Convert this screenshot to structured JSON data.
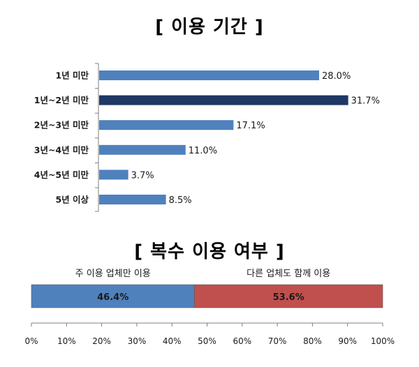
{
  "chart_data": [
    {
      "type": "bar",
      "orientation": "horizontal",
      "title": "[ 이용 기간 ]",
      "categories": [
        "1년 미만",
        "1년~2년 미만",
        "2년~3년 미만",
        "3년~4년 미만",
        "4년~5년 미만",
        "5년 이상"
      ],
      "values": [
        28.0,
        31.7,
        17.1,
        11.0,
        3.7,
        8.5
      ],
      "value_labels": [
        "28.0%",
        "31.7%",
        "17.1%",
        "11.0%",
        "3.7%",
        "8.5%"
      ],
      "xlim": [
        0,
        32
      ],
      "bar_colors": [
        "#4f81bd",
        "#1f3864",
        "#4f81bd",
        "#4f81bd",
        "#4f81bd",
        "#4f81bd"
      ],
      "grid": false
    },
    {
      "type": "bar",
      "orientation": "horizontal",
      "stacked": true,
      "title": "[ 복수 이용 여부 ]",
      "series": [
        {
          "name": "주 이용 업체만 이용",
          "value": 46.4,
          "label": "46.4%",
          "color": "#4f81bd"
        },
        {
          "name": "다른 업체도 함께 이용",
          "value": 53.6,
          "label": "53.6%",
          "color": "#c0504d"
        }
      ],
      "xlim": [
        0,
        100
      ],
      "ticks": [
        0,
        10,
        20,
        30,
        40,
        50,
        60,
        70,
        80,
        90,
        100
      ],
      "tick_labels": [
        "0%",
        "10%",
        "20%",
        "30%",
        "40%",
        "50%",
        "60%",
        "70%",
        "80%",
        "90%",
        "100%"
      ],
      "grid": false
    }
  ]
}
